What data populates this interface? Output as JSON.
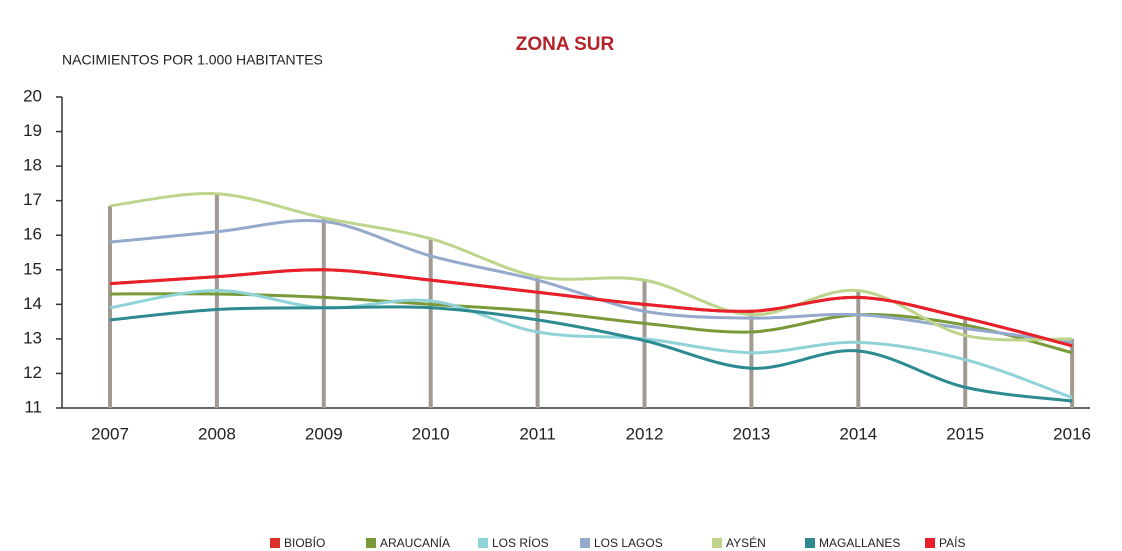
{
  "chart_data": {
    "type": "line",
    "title": "ZONA SUR",
    "y_label": "NACIMIENTOS POR 1.000 HABITANTES",
    "categories": [
      "2007",
      "2008",
      "2009",
      "2010",
      "2011",
      "2012",
      "2013",
      "2014",
      "2015",
      "2016"
    ],
    "ylim": [
      11,
      20
    ],
    "yticks": [
      11,
      12,
      13,
      14,
      15,
      16,
      17,
      18,
      19,
      20
    ],
    "legend": "bottom",
    "series": [
      {
        "name": "BIOBÍO",
        "color": "#d9312a",
        "values": [
          14.6,
          14.8,
          15.0,
          14.7,
          14.35,
          14.0,
          13.8,
          14.2,
          13.6,
          12.8
        ]
      },
      {
        "name": "ARAUCANÍA",
        "color": "#7a9a3a",
        "values": [
          14.3,
          14.3,
          14.2,
          14.0,
          13.8,
          13.45,
          13.2,
          13.7,
          13.4,
          12.6
        ]
      },
      {
        "name": "LOS RÍOS",
        "color": "#8fd3d8",
        "values": [
          13.9,
          14.4,
          13.9,
          14.1,
          13.2,
          13.0,
          12.6,
          12.9,
          12.4,
          11.3
        ]
      },
      {
        "name": "LOS LAGOS",
        "color": "#94a9cc",
        "values": [
          15.8,
          16.1,
          16.4,
          15.4,
          14.7,
          13.8,
          13.6,
          13.7,
          13.3,
          12.9
        ]
      },
      {
        "name": "AYSÉN",
        "color": "#bdd48a",
        "values": [
          16.85,
          17.2,
          16.5,
          15.9,
          14.8,
          14.7,
          13.7,
          14.4,
          13.1,
          13.0
        ]
      },
      {
        "name": "MAGALLANES",
        "color": "#2e8a91",
        "values": [
          13.55,
          13.85,
          13.9,
          13.9,
          13.55,
          12.95,
          12.15,
          12.65,
          11.6,
          11.2
        ]
      },
      {
        "name": "PAÍS",
        "color": "#e8202a",
        "values": [
          14.6,
          14.8,
          15.0,
          14.7,
          14.35,
          14.0,
          13.8,
          14.2,
          13.6,
          12.8
        ]
      }
    ]
  }
}
